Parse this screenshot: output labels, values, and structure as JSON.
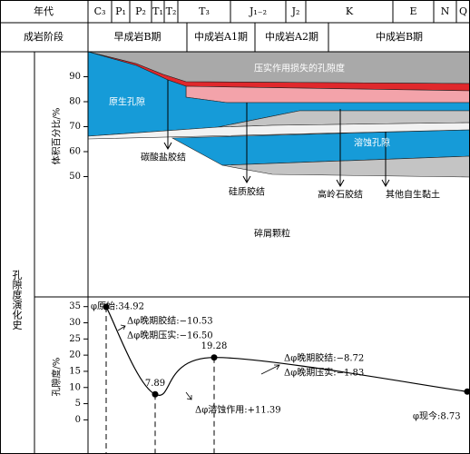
{
  "header": {
    "era_label": "年代",
    "periods": [
      "C₃",
      "P₁",
      "P₂",
      "T₁",
      "T₂",
      "T₃",
      "J₁₋₂",
      "J₂",
      "K",
      "E",
      "N",
      "Q"
    ],
    "stage_label": "成岩阶段",
    "stages": [
      "早成岩B期",
      "中成岩A1期",
      "中成岩A2期",
      "中成岩B期"
    ]
  },
  "side_label": "孔隙度演化史",
  "upper_panel": {
    "ylabel": "体积百分比/%",
    "ylim": [
      2,
      100
    ],
    "yticks": [
      50,
      60,
      70,
      80,
      90
    ],
    "region_labels": [
      "压实作用损失的孔隙度",
      "原生孔隙",
      "溶蚀孔隙",
      "碎屑颗粒"
    ],
    "process_labels": [
      "碳酸盐胶结",
      "硅质胶结",
      "高岭石胶结",
      "其他自生黏土"
    ]
  },
  "chart_data": {
    "type": "line",
    "ylabel": "孔隙度/%",
    "ylim": [
      -10,
      38
    ],
    "yticks": [
      0,
      5,
      10,
      15,
      20,
      25,
      30,
      35
    ],
    "categories": [
      null,
      null,
      null,
      null
    ],
    "values": [
      34.92,
      7.89,
      19.28,
      8.73
    ],
    "color": "#000000",
    "annotations": [
      "φ原始:34.92",
      "Δφ晚期胶结:−10.53",
      "Δφ晚期压实:−16.50",
      "Δφ溶蚀作用:+11.39",
      "Δφ晚期胶结:−8.72",
      "Δφ晚期压实:−1.83",
      "φ现今:8.73"
    ]
  }
}
